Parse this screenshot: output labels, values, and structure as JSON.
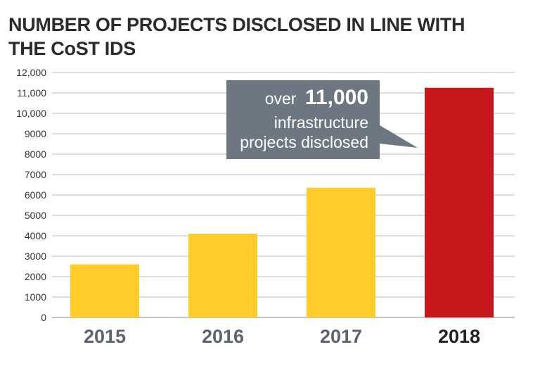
{
  "title_lines": [
    "NUMBER OF PROJECTS DISCLOSED IN LINE WITH",
    "THE CoST IDS"
  ],
  "callout": {
    "prefix": "over",
    "number": "11,000",
    "line2": "infrastructure",
    "line3": "projects disclosed"
  },
  "colors": {
    "bar_default": "#FFCC29",
    "bar_highlight": "#C8161D",
    "callout_bg": "#6D7781",
    "grid": "#bdbdbd",
    "xlabel_default": "#5b6470",
    "xlabel_highlight": "#222222"
  },
  "chart_data": {
    "type": "bar",
    "title": "NUMBER OF PROJECTS DISCLOSED IN LINE WITH THE CoST IDS",
    "categories": [
      "2015",
      "2016",
      "2017",
      "2018"
    ],
    "values": [
      2600,
      4100,
      6350,
      11250
    ],
    "highlight": "2018",
    "ylim": [
      0,
      12000
    ],
    "yticks": [
      0,
      1000,
      2000,
      3000,
      4000,
      5000,
      6000,
      7000,
      8000,
      9000,
      10000,
      11000,
      12000
    ],
    "ytick_labels": [
      "0",
      "1000",
      "2000",
      "3000",
      "4000",
      "5000",
      "6000",
      "7000",
      "8000",
      "9000",
      "10,000",
      "11,000",
      "12,000"
    ],
    "grid": true,
    "xlabel": "",
    "ylabel": ""
  }
}
